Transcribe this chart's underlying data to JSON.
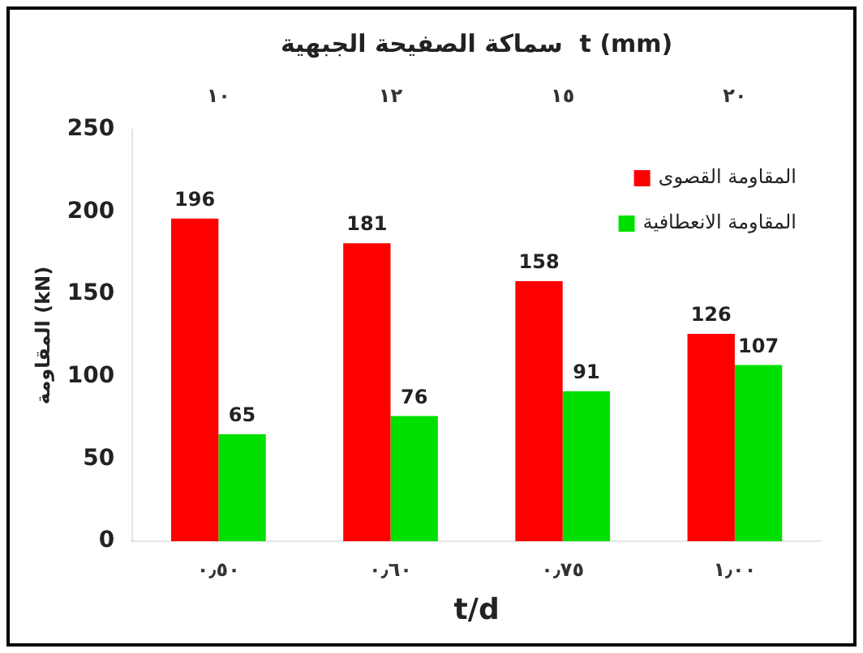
{
  "chart_data": {
    "type": "bar",
    "categories": [
      "٠٫٥٠",
      "٠٫٦٠",
      "٠٫٧٥",
      "١٫٠٠"
    ],
    "series": [
      {
        "name": "المقاومة القصوى",
        "color": "#ff0000",
        "values": [
          196,
          181,
          158,
          126
        ]
      },
      {
        "name": "المقاومة الانعطافية",
        "color": "#00e000",
        "values": [
          65,
          76,
          91,
          107
        ]
      }
    ],
    "xlabel": "t/d",
    "ylabel": "المقاومة (kN)",
    "x2label": "سماكة الصفيحة الجبهية  t (mm)",
    "annotations": [
      "١٠",
      "١٢",
      "١٥",
      "٢٠"
    ],
    "ylim": [
      0,
      250
    ],
    "yticks": [
      0,
      50,
      100,
      150,
      200,
      250
    ],
    "grid": false,
    "legend": "top right",
    "data_labels": true
  }
}
